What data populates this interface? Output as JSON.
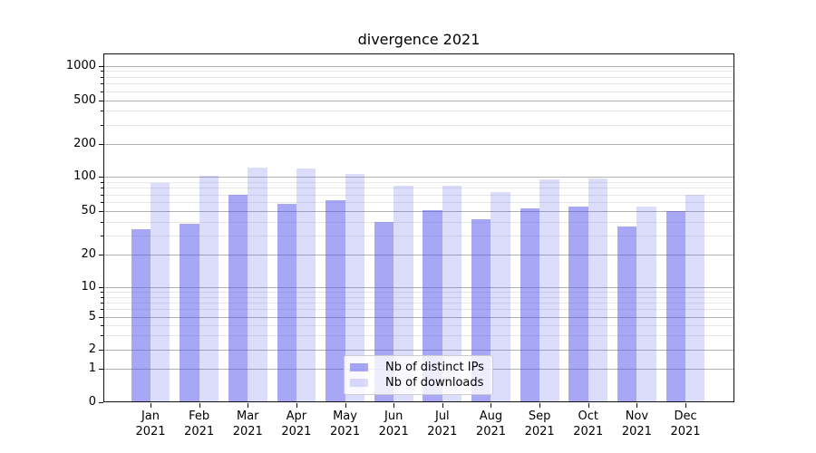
{
  "chart_data": {
    "type": "bar",
    "title": "divergence 2021",
    "categories": [
      "Jan",
      "Feb",
      "Mar",
      "Apr",
      "May",
      "Jun",
      "Jul",
      "Aug",
      "Sep",
      "Oct",
      "Nov",
      "Dec"
    ],
    "category_year": "2021",
    "series": [
      {
        "name": "Nb of distinct IPs",
        "color": "rgba(79,79,237,0.5)",
        "values": [
          34,
          38,
          69,
          58,
          62,
          40,
          51,
          42,
          53,
          55,
          36,
          50
        ]
      },
      {
        "name": "Nb of downloads",
        "color": "rgba(79,79,237,0.2)",
        "values": [
          88,
          101,
          121,
          118,
          106,
          83,
          84,
          74,
          95,
          96,
          55,
          70
        ]
      }
    ],
    "yscale": "symlog",
    "yticks": [
      0,
      1,
      2,
      5,
      10,
      20,
      50,
      100,
      200,
      500,
      1000
    ],
    "ylim": [
      0,
      1300
    ],
    "xlabel": "",
    "ylabel": "",
    "grid": "horizontal major+minor",
    "legend_position": "lower center",
    "colors": {
      "bar_distinct_ips": "#a7a7f6",
      "bar_downloads": "#dcdcfb",
      "major_grid": "#b1b1b1",
      "minor_grid": "#e8e8e8",
      "frame": "#111111",
      "text": "#000000",
      "legend_border": "#cccccc"
    }
  }
}
